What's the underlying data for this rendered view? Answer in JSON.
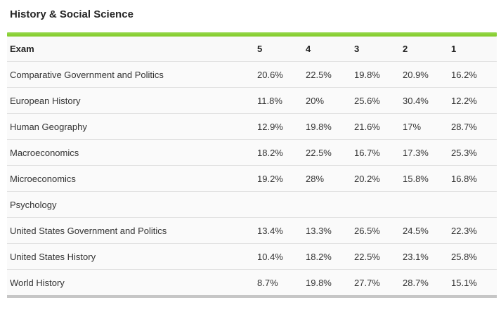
{
  "page": {
    "title": "History & Social Science"
  },
  "colors": {
    "accent_green": "#8cd136",
    "row_background": "#fafafa",
    "row_separator": "#e3e3e3",
    "table_bottom_border": "#c6c6c6",
    "text": "#333333"
  },
  "table": {
    "columns": [
      "Exam",
      "5",
      "4",
      "3",
      "2",
      "1"
    ],
    "rows": [
      {
        "exam": "Comparative Government and Politics",
        "values": [
          "20.6%",
          "22.5%",
          "19.8%",
          "20.9%",
          "16.2%"
        ]
      },
      {
        "exam": "European History",
        "values": [
          "11.8%",
          "20%",
          "25.6%",
          "30.4%",
          "12.2%"
        ]
      },
      {
        "exam": "Human Geography",
        "values": [
          "12.9%",
          "19.8%",
          "21.6%",
          "17%",
          "28.7%"
        ]
      },
      {
        "exam": "Macroeconomics",
        "values": [
          "18.2%",
          "22.5%",
          "16.7%",
          "17.3%",
          "25.3%"
        ]
      },
      {
        "exam": "Microeconomics",
        "values": [
          "19.2%",
          "28%",
          "20.2%",
          "15.8%",
          "16.8%"
        ]
      },
      {
        "exam": "Psychology",
        "values": [
          "",
          "",
          "",
          "",
          ""
        ]
      },
      {
        "exam": "United States Government and Politics",
        "values": [
          "13.4%",
          "13.3%",
          "26.5%",
          "24.5%",
          "22.3%"
        ]
      },
      {
        "exam": "United States History",
        "values": [
          "10.4%",
          "18.2%",
          "22.5%",
          "23.1%",
          "25.8%"
        ]
      },
      {
        "exam": "World History",
        "values": [
          "8.7%",
          "19.8%",
          "27.7%",
          "28.7%",
          "15.1%"
        ]
      }
    ]
  }
}
